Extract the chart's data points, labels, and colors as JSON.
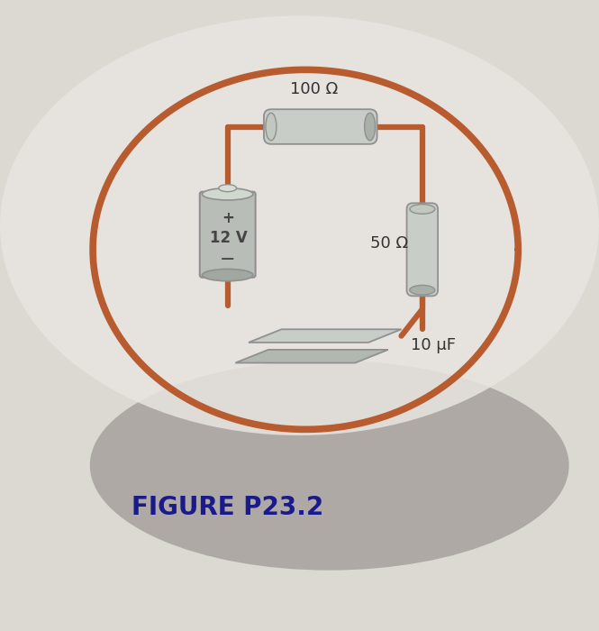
{
  "bg_color": "#dcd8d2",
  "circuit_bg": "#e8e4e0",
  "wire_color": "#b85c30",
  "wire_linewidth": 4.5,
  "component_color": "#b8bdb8",
  "component_color2": "#c8cdc8",
  "component_edge_color": "#909090",
  "title": "FIGURE P23.2",
  "title_color": "#1a1a8c",
  "title_fontsize": 20,
  "title_weight": "bold",
  "resistor_100_label": "100 Ω",
  "resistor_50_label": "50 Ω",
  "capacitor_label": "10 μF",
  "battery_label_plus": "+",
  "battery_label_volt": "12 V",
  "battery_label_minus": "−",
  "label_fontsize": 13,
  "battery_fontsize": 12,
  "shadow_color": "#8a8480"
}
